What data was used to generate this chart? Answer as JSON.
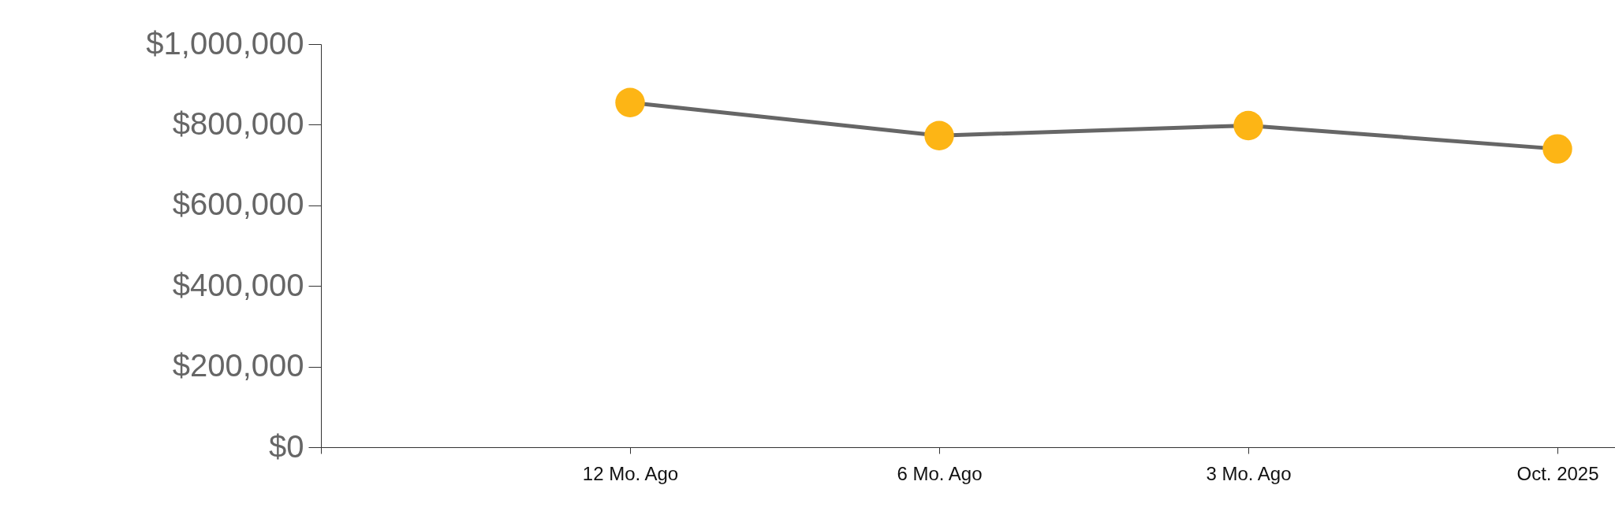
{
  "chart_data": {
    "type": "line",
    "categories": [
      null,
      "12 Mo. Ago",
      "6 Mo. Ago",
      "3 Mo. Ago",
      "Oct. 2025"
    ],
    "series": [
      {
        "color": "#fdb515",
        "values": [
          null,
          855000,
          773000,
          798000,
          740000
        ]
      }
    ],
    "ylim": [
      0,
      1000000
    ],
    "yticks": [
      {
        "value": 0,
        "label": "$0"
      },
      {
        "value": 200000,
        "label": "$200,000"
      },
      {
        "value": 400000,
        "label": "$400,000"
      },
      {
        "value": 600000,
        "label": "$600,000"
      },
      {
        "value": 800000,
        "label": "$800,000"
      },
      {
        "value": 1000000,
        "label": "$1,000,000"
      }
    ],
    "grid": false,
    "marker": "circle",
    "line_style": "solid"
  }
}
